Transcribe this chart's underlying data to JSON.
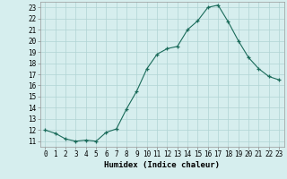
{
  "x_values": [
    0,
    1,
    2,
    3,
    4,
    5,
    6,
    7,
    8,
    9,
    10,
    11,
    12,
    13,
    14,
    15,
    16,
    17,
    18,
    19,
    20,
    21,
    22,
    23
  ],
  "y_values": [
    12.0,
    11.7,
    11.2,
    11.0,
    11.1,
    11.0,
    11.8,
    12.1,
    13.9,
    15.5,
    17.5,
    18.8,
    19.3,
    19.5,
    21.0,
    21.8,
    23.0,
    23.2,
    21.7,
    20.0,
    18.5,
    17.5,
    16.8,
    16.5
  ],
  "line_color": "#1a6b5a",
  "marker": "+",
  "marker_size": 3.5,
  "bg_color": "#d6eeee",
  "grid_color": "#b0d4d4",
  "xlabel": "Humidex (Indice chaleur)",
  "ylabel": "",
  "xlim": [
    -0.5,
    23.5
  ],
  "ylim": [
    10.5,
    23.5
  ],
  "yticks": [
    11,
    12,
    13,
    14,
    15,
    16,
    17,
    18,
    19,
    20,
    21,
    22,
    23
  ],
  "xticks": [
    0,
    1,
    2,
    3,
    4,
    5,
    6,
    7,
    8,
    9,
    10,
    11,
    12,
    13,
    14,
    15,
    16,
    17,
    18,
    19,
    20,
    21,
    22,
    23
  ],
  "label_fontsize": 6.5,
  "tick_fontsize": 5.5
}
